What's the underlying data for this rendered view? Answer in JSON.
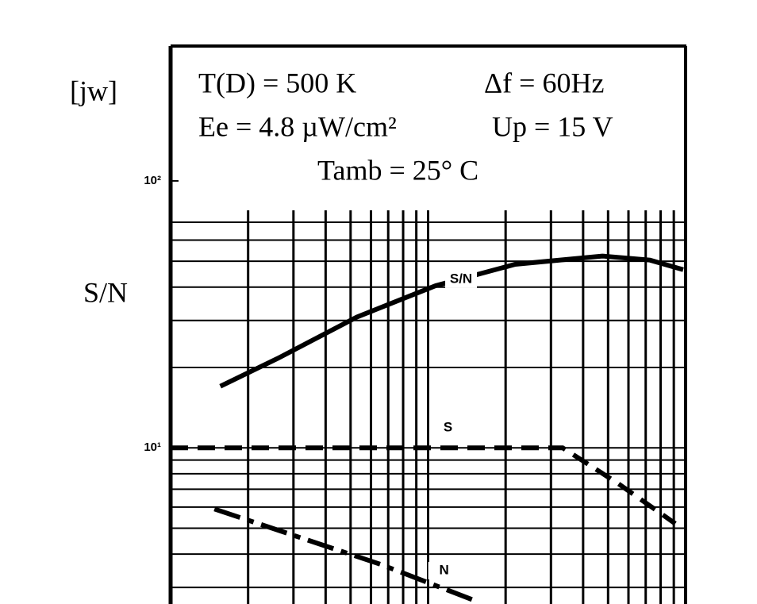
{
  "chart_data": {
    "type": "line",
    "unit_label": "[jw]",
    "ylabel": "S/N",
    "annotations": [
      "T(D) = 500 K",
      "Δf  = 60Hz",
      "Ee  = 4.8 µW/cm²",
      "Up  = 15 V",
      "Tamb = 25° C"
    ],
    "log_x": true,
    "log_y": true,
    "xlim": [
      1,
      100
    ],
    "ylim": [
      2.6,
      320
    ],
    "yticks": [
      {
        "value": 100,
        "label": "10²"
      },
      {
        "value": 10,
        "label": "10¹"
      }
    ],
    "grid": true,
    "xgrid": [
      2,
      3,
      4,
      5,
      6,
      7,
      8,
      9,
      10,
      20,
      30,
      40,
      50,
      60,
      70,
      80,
      90
    ],
    "ygrid": [
      3,
      4,
      5,
      6,
      7,
      8,
      9,
      10,
      20,
      30,
      40,
      50,
      60,
      70
    ],
    "series": [
      {
        "name": "S/N",
        "color": "#000000",
        "dash": "solid",
        "x": [
          1.56,
          2.6,
          5.29,
          10.7,
          21.8,
          47.5,
          72.7,
          97.9
        ],
        "values": [
          17.0,
          21.6,
          30.9,
          40.5,
          48.7,
          52.3,
          50.5,
          46.5
        ]
      },
      {
        "name": "S",
        "color": "#000000",
        "dash": "dashed",
        "x": [
          1,
          10,
          33.3,
          54.7,
          91.2
        ],
        "values": [
          10,
          10,
          10,
          7.35,
          5.2
        ]
      },
      {
        "name": "N",
        "color": "#000000",
        "dash": "dashdot",
        "x": [
          1.48,
          6.54,
          15.3
        ],
        "values": [
          5.9,
          3.66,
          2.67
        ]
      }
    ]
  }
}
